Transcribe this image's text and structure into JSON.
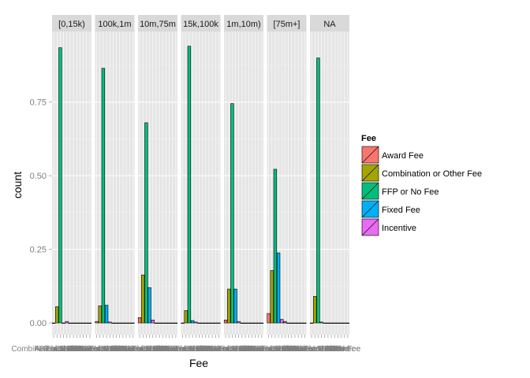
{
  "chart_data": {
    "type": "bar",
    "facet_variable": "",
    "facets": [
      "[0,15k)",
      "100k,1m",
      "10m,75m",
      "15k,100k",
      "1m,10m)",
      "[75m+]",
      "NA"
    ],
    "categories": [
      "Award Fee",
      "Combination or Other Fee",
      "FFP or No Fee",
      "Fixed Fee",
      "Incentive",
      "Other",
      "Other",
      "Other",
      "Other",
      "Other",
      "Other",
      "No Fee"
    ],
    "fill_categories": [
      "Award Fee",
      "Combination or Other Fee",
      "FFP or No Fee",
      "Fixed Fee",
      "Incentive"
    ],
    "colors": {
      "Award Fee": "#F8766D",
      "Combination or Other Fee": "#A3A500",
      "FFP or No Fee": "#00BF7D",
      "Fixed Fee": "#00B0F6",
      "Incentive": "#E76BF3"
    },
    "panel_values": [
      [
        0,
        0.055,
        0.935,
        0,
        0.005,
        0,
        0,
        0,
        0,
        0,
        0,
        0
      ],
      [
        0.005,
        0.058,
        0.865,
        0.06,
        0.003,
        0,
        0,
        0,
        0,
        0,
        0,
        0
      ],
      [
        0.018,
        0.163,
        0.68,
        0.12,
        0.01,
        0,
        0,
        0,
        0,
        0,
        0,
        0
      ],
      [
        0,
        0.042,
        0.94,
        0.008,
        0.003,
        0,
        0,
        0,
        0,
        0,
        0,
        0
      ],
      [
        0.01,
        0.115,
        0.745,
        0.115,
        0.005,
        0,
        0,
        0,
        0,
        0,
        0,
        0
      ],
      [
        0.032,
        0.178,
        0.522,
        0.238,
        0.012,
        0.005,
        0,
        0,
        0,
        0,
        0,
        0
      ],
      [
        0,
        0.09,
        0.9,
        0.003,
        0,
        0,
        0,
        0,
        0,
        0,
        0,
        0
      ]
    ],
    "ylim": [
      -0.04,
      0.99
    ],
    "yticks": [
      0.0,
      0.25,
      0.5,
      0.75
    ],
    "ytick_labels": [
      "0.00",
      "0.25",
      "0.50",
      "0.75"
    ],
    "xlabel": "Fee",
    "ylabel": "count",
    "legend": {
      "title": "Fee",
      "entries": [
        "Award Fee",
        "Combination or Other Fee",
        "FFP or No Fee",
        "Fixed Fee",
        "Incentive"
      ],
      "position": "right"
    },
    "grid": true
  }
}
